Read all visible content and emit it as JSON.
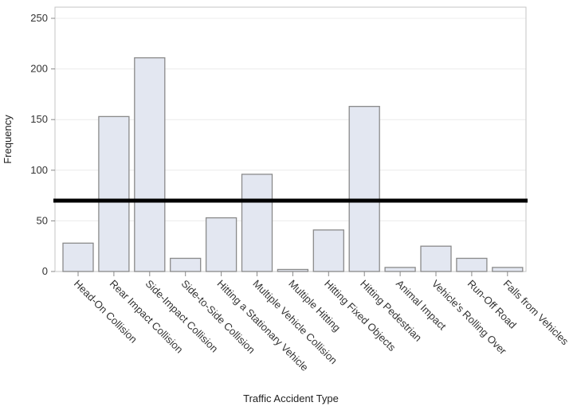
{
  "chart_data": {
    "type": "bar",
    "title": "",
    "xlabel": "Traffic Accident Type",
    "ylabel": "Frequency",
    "ylim": [
      0,
      250
    ],
    "yticks": [
      0,
      50,
      100,
      150,
      200,
      250
    ],
    "grid": true,
    "categories": [
      "Head-On Collision",
      "Rear Impact Collision",
      "Side-Impact Collision",
      "Side-to-Side Collision",
      "Hitting a Stationary Vehicle",
      "Multiple Vehicle Collision",
      "Multiple Hitting",
      "Hitting Fixed Objects",
      "Hitting Pedestrian",
      "Animal Impact",
      "Vehicle's Rolling Over",
      "Run-Off Road",
      "Falls from Vehicles"
    ],
    "values": [
      28,
      153,
      211,
      13,
      53,
      96,
      2,
      41,
      163,
      4,
      25,
      13,
      4
    ],
    "reference_line": 70,
    "colors": {
      "bar_fill": "#e3e7f1",
      "bar_stroke": "#8a8a8a",
      "reference_line": "#000000",
      "grid": "#ececec"
    }
  }
}
